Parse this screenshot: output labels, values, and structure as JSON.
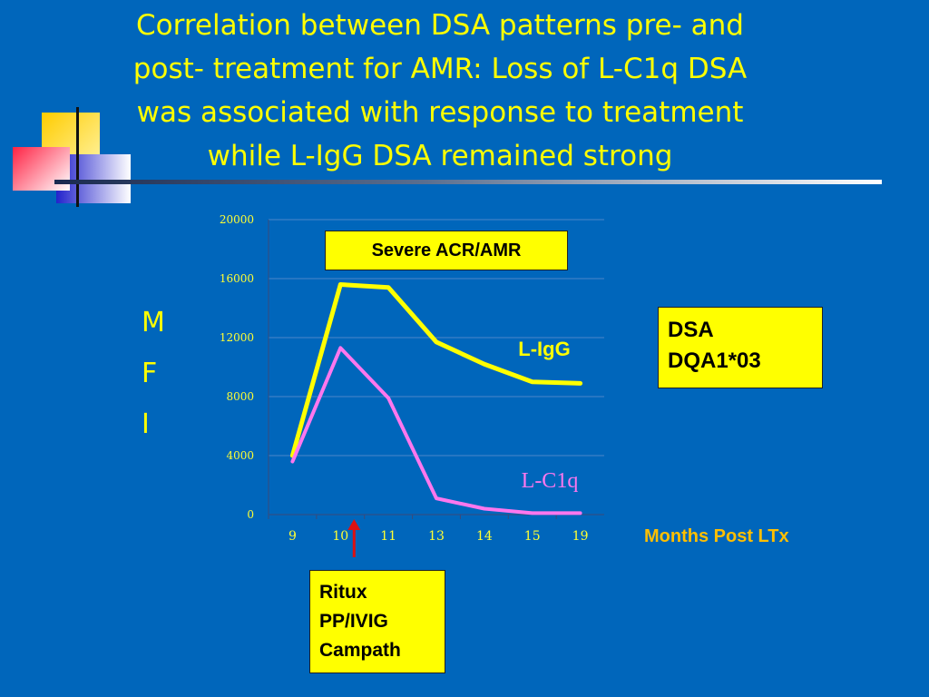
{
  "slide": {
    "title_lines": [
      "Correlation between DSA patterns pre- and",
      "post- treatment for AMR: Loss of L-C1q DSA",
      "was associated with response to treatment",
      "while L-IgG DSA remained strong"
    ],
    "ylabel_letters": [
      "M",
      "F",
      "I"
    ],
    "xlabel": "Months Post LTx",
    "severe_label": "Severe ACR/AMR",
    "dsa_lines": [
      "DSA",
      "DQA1*03"
    ],
    "treatment_lines": [
      "Ritux",
      "PP/IVIG",
      "Campath"
    ]
  },
  "colors": {
    "background": "#0066bb",
    "title": "#ffff00",
    "igg_line": "#ffff00",
    "c1q_line": "#ff77ee",
    "arrow": "#dd1111",
    "xlabel": "#ffbf00"
  },
  "chart_data": {
    "type": "line",
    "categories": [
      "9",
      "10",
      "11",
      "13",
      "14",
      "15",
      "19"
    ],
    "yticks": [
      "20000",
      "16000",
      "12000",
      "8000",
      "4000",
      "0"
    ],
    "ylim": [
      0,
      20000
    ],
    "grid": "horizontal",
    "series": [
      {
        "name": "L-IgG",
        "values": [
          4000,
          15600,
          15400,
          11700,
          10200,
          9000,
          8900
        ]
      },
      {
        "name": "L-C1q",
        "values": [
          3600,
          11300,
          7900,
          1100,
          400,
          100,
          100
        ]
      }
    ],
    "annotation_arrow_category": "10"
  }
}
